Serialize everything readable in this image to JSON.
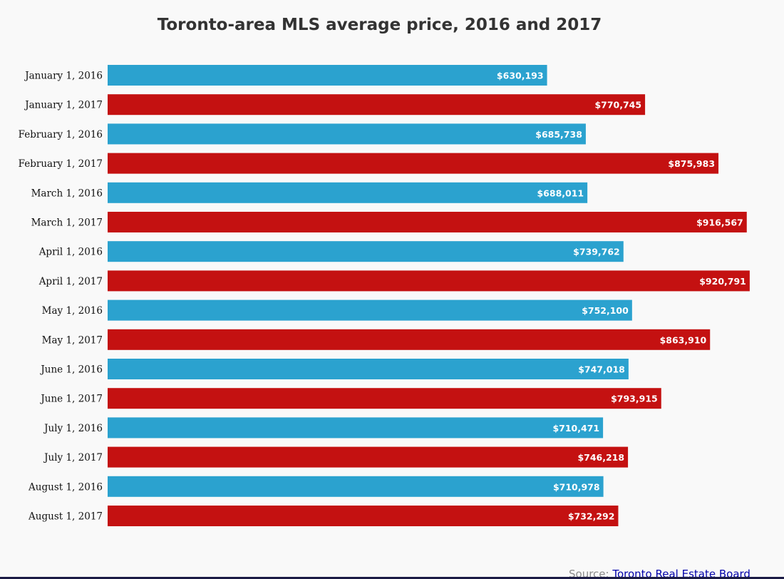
{
  "chart_data": {
    "type": "bar",
    "orientation": "horizontal",
    "title": "Toronto-area MLS average price, 2016 and 2017",
    "categories": [
      "January 1, 2016",
      "January 1, 2017",
      "February 1, 2016",
      "February 1, 2017",
      "March 1, 2016",
      "March 1, 2017",
      "April 1, 2016",
      "April 1, 2017",
      "May 1, 2016",
      "May 1, 2017",
      "June 1, 2016",
      "June 1, 2017",
      "July 1, 2016",
      "July 1, 2017",
      "August 1, 2016",
      "August 1, 2017"
    ],
    "values": [
      630193,
      770745,
      685738,
      875983,
      688011,
      916567,
      739762,
      920791,
      752100,
      863910,
      747018,
      793915,
      710471,
      746218,
      710978,
      732292
    ],
    "value_labels": [
      "$630,193",
      "$770,745",
      "$685,738",
      "$875,983",
      "$688,011",
      "$916,567",
      "$739,762",
      "$920,791",
      "$752,100",
      "$863,910",
      "$747,018",
      "$793,915",
      "$710,471",
      "$746,218",
      "$710,978",
      "$732,292"
    ],
    "bar_colors": [
      "#2ba2cf",
      "#c41111"
    ],
    "xlim": [
      0,
      925000
    ],
    "grid": false,
    "legend": "none"
  },
  "source": {
    "prefix": "Source:",
    "link_text": "Toronto Real Estate Board"
  },
  "colors": {
    "year_2016": "#2ba2cf",
    "year_2017": "#c41111",
    "background": "#f9f9f9"
  }
}
